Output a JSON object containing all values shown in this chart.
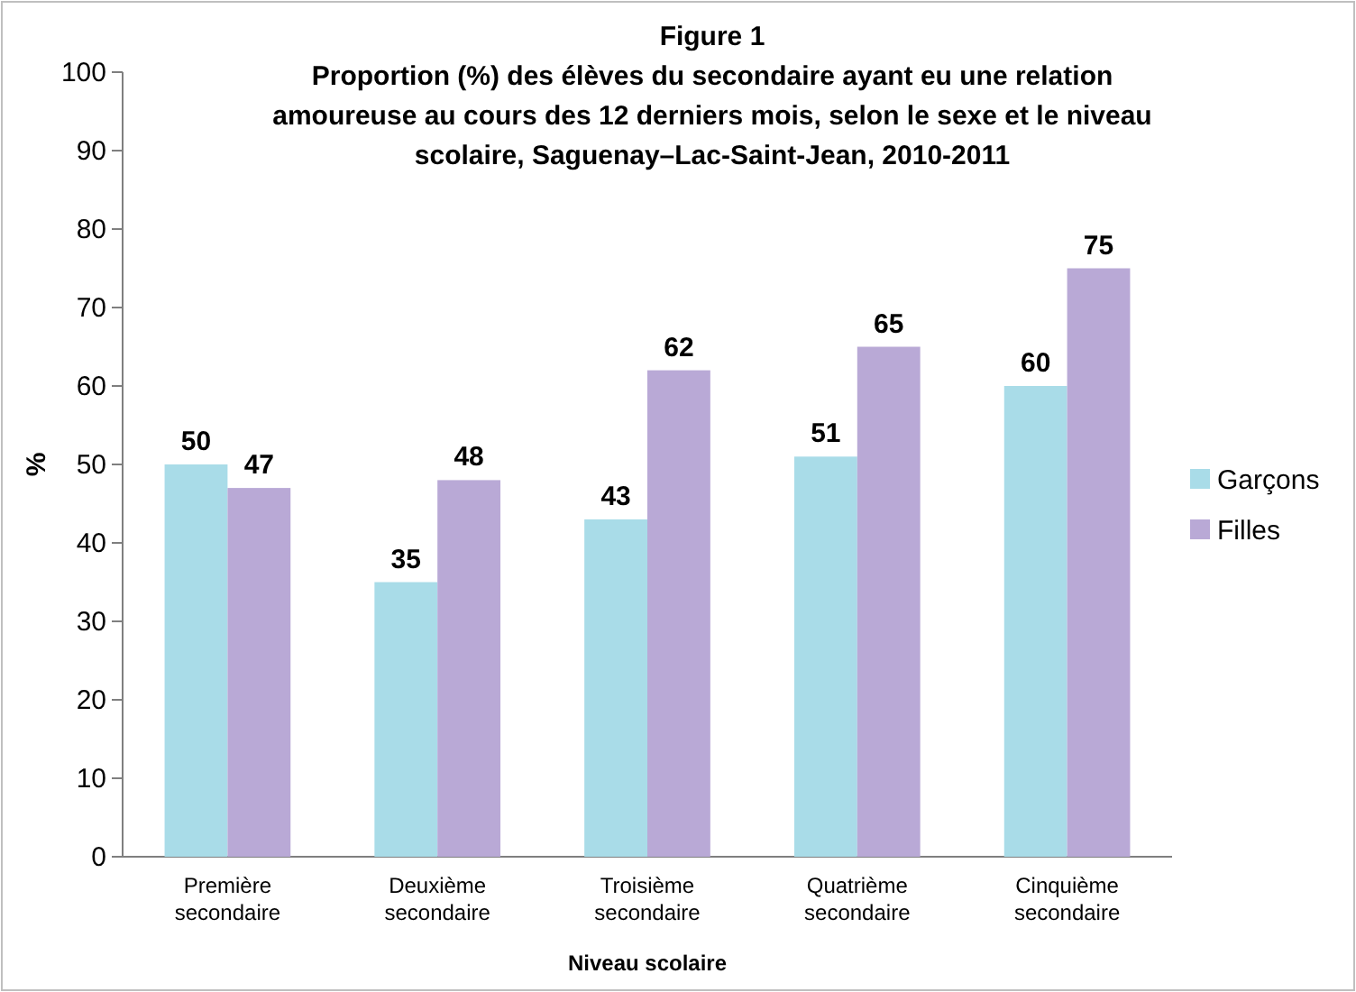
{
  "chart_data": {
    "type": "bar",
    "title": "Figure 1\nProportion (%) des élèves du secondaire ayant eu une relation\namoureuse au cours des 12 derniers mois, selon le sexe et le niveau\nscolaire, Saguenay–Lac-Saint-Jean, 2010-2011",
    "xlabel": "Niveau scolaire",
    "ylabel": "%",
    "categories": [
      "Première\nsecondaire",
      "Deuxième\nsecondaire",
      "Troisième\nsecondaire",
      "Quatrième\nsecondaire",
      "Cinquième\nsecondaire"
    ],
    "series": [
      {
        "name": "Garçons",
        "color": "#a9dce8",
        "values": [
          50,
          35,
          43,
          51,
          60
        ]
      },
      {
        "name": "Filles",
        "color": "#b9a9d6",
        "values": [
          47,
          48,
          62,
          65,
          75
        ]
      }
    ],
    "ylim": [
      0,
      100
    ],
    "yticks": [
      0,
      10,
      20,
      30,
      40,
      50,
      60,
      70,
      80,
      90,
      100
    ],
    "grid": false,
    "legend": "right",
    "data_labels": true
  }
}
